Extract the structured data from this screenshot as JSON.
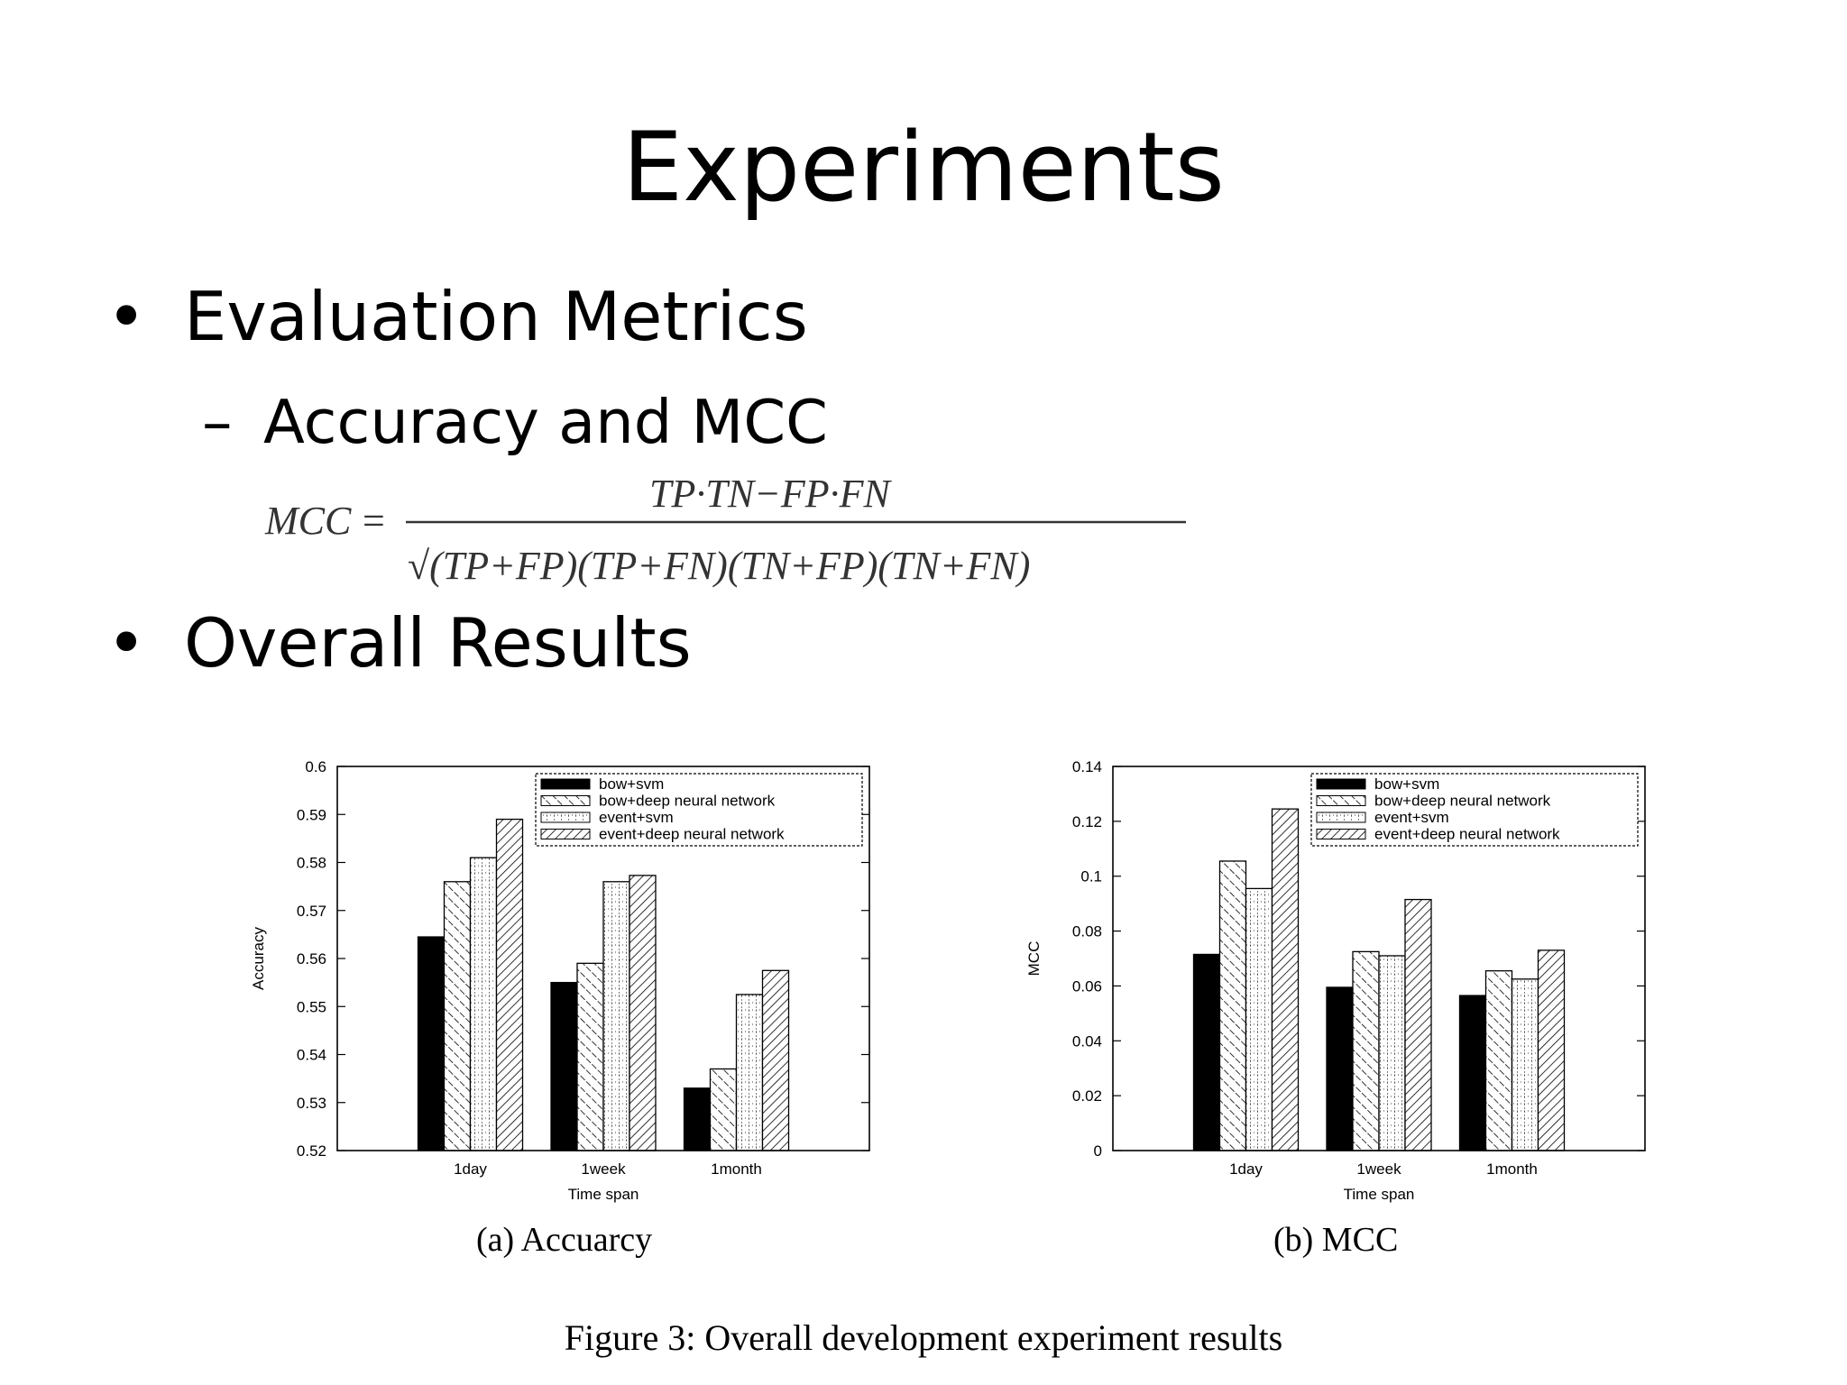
{
  "slide": {
    "title": "Experiments",
    "bullets": [
      "Evaluation Metrics",
      "Overall Results"
    ],
    "bullet_symbol": "•",
    "sub_bullet_symbol": "–",
    "sub_bullets": [
      "Accuracy and MCC"
    ]
  },
  "formula": {
    "lhs": "MCC",
    "equals": "=",
    "numerator": "TP·TN−FP·FN",
    "denominator": "√(TP+FP)(TP+FN)(TN+FP)(TN+FN)"
  },
  "figure": {
    "caption": "Figure 3: Overall development experiment results"
  },
  "chart_data": [
    {
      "type": "bar",
      "title": "",
      "caption": "(a) Accuarcy",
      "xlabel": "Time span",
      "ylabel": "Accuracy",
      "categories": [
        "1day",
        "1week",
        "1month"
      ],
      "ylim": [
        0.52,
        0.6
      ],
      "yticks": [
        "0.52",
        "0.53",
        "0.54",
        "0.55",
        "0.56",
        "0.57",
        "0.58",
        "0.59",
        "0.6"
      ],
      "legend_position": "top-right",
      "grid": false,
      "series": [
        {
          "name": "bow+svm",
          "values": [
            0.5645,
            0.555,
            0.533
          ]
        },
        {
          "name": "bow+deep neural network",
          "values": [
            0.576,
            0.559,
            0.537
          ]
        },
        {
          "name": "event+svm",
          "values": [
            0.581,
            0.576,
            0.5525
          ]
        },
        {
          "name": "event+deep neural network",
          "values": [
            0.589,
            0.5773,
            0.5575
          ]
        }
      ]
    },
    {
      "type": "bar",
      "title": "",
      "caption": "(b) MCC",
      "xlabel": "Time span",
      "ylabel": "MCC",
      "categories": [
        "1day",
        "1week",
        "1month"
      ],
      "ylim": [
        0,
        0.14
      ],
      "yticks": [
        "0",
        "0.02",
        "0.04",
        "0.06",
        "0.08",
        "0.1",
        "0.12",
        "0.14"
      ],
      "legend_position": "top-right",
      "grid": false,
      "series": [
        {
          "name": "bow+svm",
          "values": [
            0.0715,
            0.0595,
            0.0565
          ]
        },
        {
          "name": "bow+deep neural network",
          "values": [
            0.1055,
            0.0725,
            0.0655
          ]
        },
        {
          "name": "event+svm",
          "values": [
            0.0955,
            0.071,
            0.0625
          ]
        },
        {
          "name": "event+deep neural network",
          "values": [
            0.1245,
            0.0915,
            0.073
          ]
        }
      ]
    }
  ]
}
